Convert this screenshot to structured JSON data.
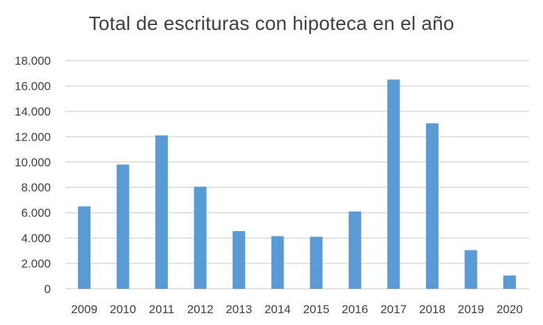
{
  "chart_data": {
    "type": "bar",
    "title": "Total de escrituras con hipoteca en el año",
    "xlabel": "",
    "ylabel": "",
    "categories": [
      "2009",
      "2010",
      "2011",
      "2012",
      "2013",
      "2014",
      "2015",
      "2016",
      "2017",
      "2018",
      "2019",
      "2020"
    ],
    "values": [
      6500,
      9800,
      12100,
      8050,
      4550,
      4150,
      4100,
      6100,
      16500,
      13050,
      3050,
      1050
    ],
    "ylim": [
      0,
      18000
    ],
    "y_ticks": [
      0,
      2000,
      4000,
      6000,
      8000,
      10000,
      12000,
      14000,
      16000,
      18000
    ],
    "y_tick_labels": [
      "0",
      "2.000",
      "4.000",
      "6.000",
      "8.000",
      "10.000",
      "12.000",
      "14.000",
      "16.000",
      "18.000"
    ],
    "grid": true,
    "legend": "none",
    "bar_color": "#5b9bd5",
    "grid_color": "#d9d9d9"
  }
}
